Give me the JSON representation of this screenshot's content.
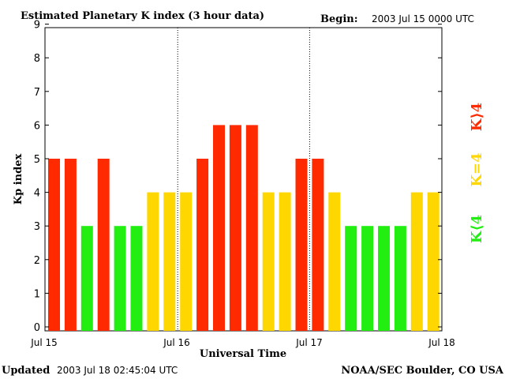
{
  "colors": {
    "k_below_4": "#22ee11",
    "k_equal_4": "#ffd700",
    "k_above_4": "#ff2a00",
    "frame": "#000000",
    "background": "#ffffff"
  },
  "header": {
    "begin_label": "Begin:",
    "begin_value": "2003 Jul 15 0000 UTC"
  },
  "footer": {
    "updated_label": "Updated",
    "updated_value": "2003 Jul 18 02:45:04 UTC",
    "source": "NOAA/SEC Boulder, CO USA"
  },
  "legend": {
    "items": [
      {
        "label": "K⟨4",
        "color": "#22ee11"
      },
      {
        "label": "K=4",
        "color": "#ffd700"
      },
      {
        "label": "K⟩4",
        "color": "#ff2a00"
      }
    ]
  },
  "chart_data": {
    "type": "bar",
    "title": "Estimated Planetary K index (3 hour data)",
    "xlabel": "Universal Time",
    "ylabel": "Kp index",
    "ylim": [
      0,
      9
    ],
    "yticks": [
      "0",
      "1",
      "2",
      "3",
      "4",
      "5",
      "6",
      "7",
      "8",
      "9"
    ],
    "xticks": [
      "Jul 15",
      "Jul 16",
      "Jul 17",
      "Jul 18"
    ],
    "day_separators": [
      8,
      16
    ],
    "values": [
      5,
      5,
      3,
      5,
      3,
      3,
      4,
      4,
      4,
      5,
      6,
      6,
      6,
      4,
      4,
      5,
      5,
      4,
      3,
      3,
      3,
      3,
      4,
      4
    ],
    "grid": false
  }
}
